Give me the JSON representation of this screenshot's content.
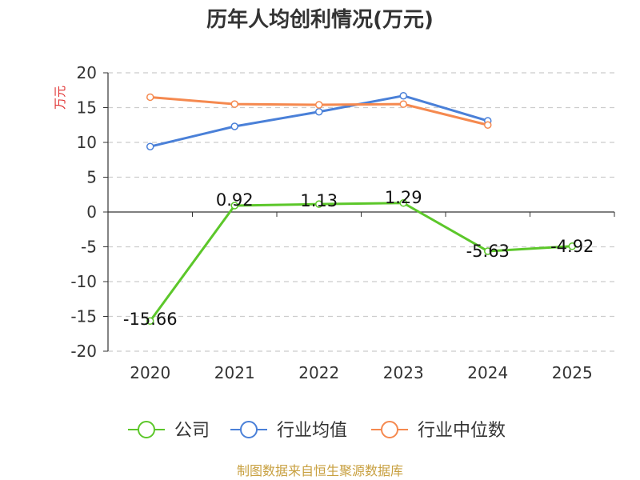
{
  "chart_data": {
    "type": "line",
    "title": "历年人均创利情况(万元)",
    "ylabel": "万元",
    "xlabel": "",
    "categories": [
      "2020",
      "2021",
      "2022",
      "2023",
      "2024",
      "2025"
    ],
    "ylim": [
      -20,
      20
    ],
    "yticks": [
      20,
      15,
      10,
      5,
      0,
      -5,
      -10,
      -15,
      -20
    ],
    "grid": true,
    "legend_position": "bottom",
    "series": [
      {
        "name": "公司",
        "color": "#5cc72a",
        "values": [
          -15.66,
          0.92,
          1.13,
          1.29,
          -5.63,
          -4.92
        ],
        "labels": [
          "-15.66",
          "0.92",
          "1.13",
          "1.29",
          "-5.63",
          "-4.92"
        ]
      },
      {
        "name": "行业均值",
        "color": "#4a80d8",
        "values": [
          9.4,
          12.3,
          14.4,
          16.7,
          13.1,
          null
        ]
      },
      {
        "name": "行业中位数",
        "color": "#f5894f",
        "values": [
          16.5,
          15.5,
          15.4,
          15.5,
          12.5,
          null
        ]
      }
    ]
  },
  "footer": {
    "source": "制图数据来自恒生聚源数据库"
  }
}
